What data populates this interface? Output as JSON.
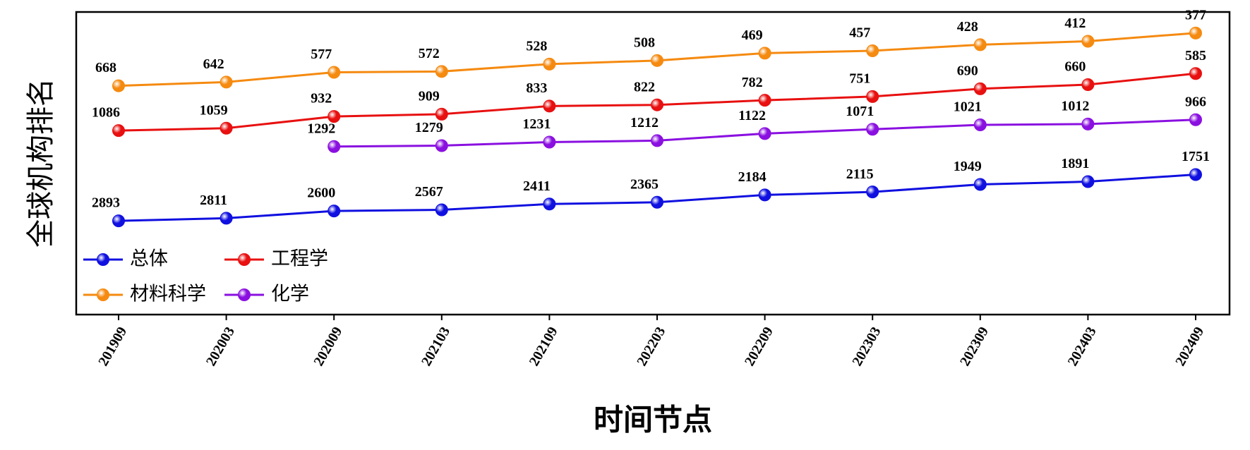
{
  "chart_data": {
    "type": "line",
    "y_label": "全球机构排名",
    "x_label": "时间节点",
    "categories": [
      "201909",
      "202003",
      "202009",
      "202103",
      "202109",
      "202203",
      "202209",
      "202303",
      "202309",
      "202403",
      "202409"
    ],
    "series": [
      {
        "name": "总体",
        "color": "#1010e0",
        "values": [
          2893,
          2811,
          2600,
          2567,
          2411,
          2365,
          2184,
          2115,
          1949,
          1891,
          1751
        ]
      },
      {
        "name": "工程学",
        "color": "#e81010",
        "values": [
          1086,
          1059,
          932,
          909,
          833,
          822,
          782,
          751,
          690,
          660,
          585
        ]
      },
      {
        "name": "材料科学",
        "color": "#f58a10",
        "values": [
          668,
          642,
          577,
          572,
          528,
          508,
          469,
          457,
          428,
          412,
          377
        ]
      },
      {
        "name": "化学",
        "color": "#8a10e0",
        "values": [
          null,
          null,
          1292,
          1279,
          1231,
          1212,
          1122,
          1071,
          1021,
          1012,
          966
        ]
      }
    ],
    "ylim": [
      8000,
      300
    ],
    "log_y": true,
    "legend": "lower left"
  }
}
